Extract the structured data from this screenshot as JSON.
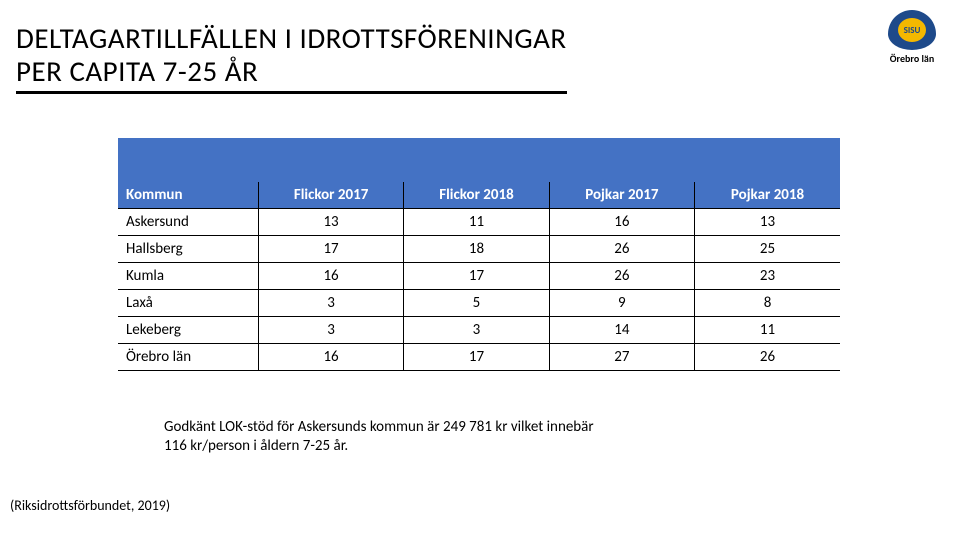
{
  "title_line1": "DELTAGARTILLFÄLLEN I IDROTTSFÖRENINGAR",
  "title_line2": "PER CAPITA 7-25 ÅR",
  "logo": {
    "inner_text": "SISU",
    "caption": "Örebro län"
  },
  "table": {
    "type": "table",
    "header_bg": "#4472c4",
    "header_color": "#ffffff",
    "border_color": "#000000",
    "font_size": 15,
    "columns": [
      "Kommun",
      "Flickor 2017",
      "Flickor 2018",
      "Pojkar 2017",
      "Pojkar 2018"
    ],
    "rows": [
      [
        "Askersund",
        "13",
        "11",
        "16",
        "13"
      ],
      [
        "Hallsberg",
        "17",
        "18",
        "26",
        "25"
      ],
      [
        "Kumla",
        "16",
        "17",
        "26",
        "23"
      ],
      [
        "Laxå",
        "3",
        "5",
        "9",
        "8"
      ],
      [
        "Lekeberg",
        "3",
        "3",
        "14",
        "11"
      ],
      [
        "Örebro län",
        "16",
        "17",
        "27",
        "26"
      ]
    ]
  },
  "note_line1": "Godkänt LOK-stöd för Askersunds kommun är 249 781 kr vilket innebär",
  "note_line2": "116 kr/person i åldern 7-25 år.",
  "source": "(Riksidrottsförbundet, 2019)"
}
